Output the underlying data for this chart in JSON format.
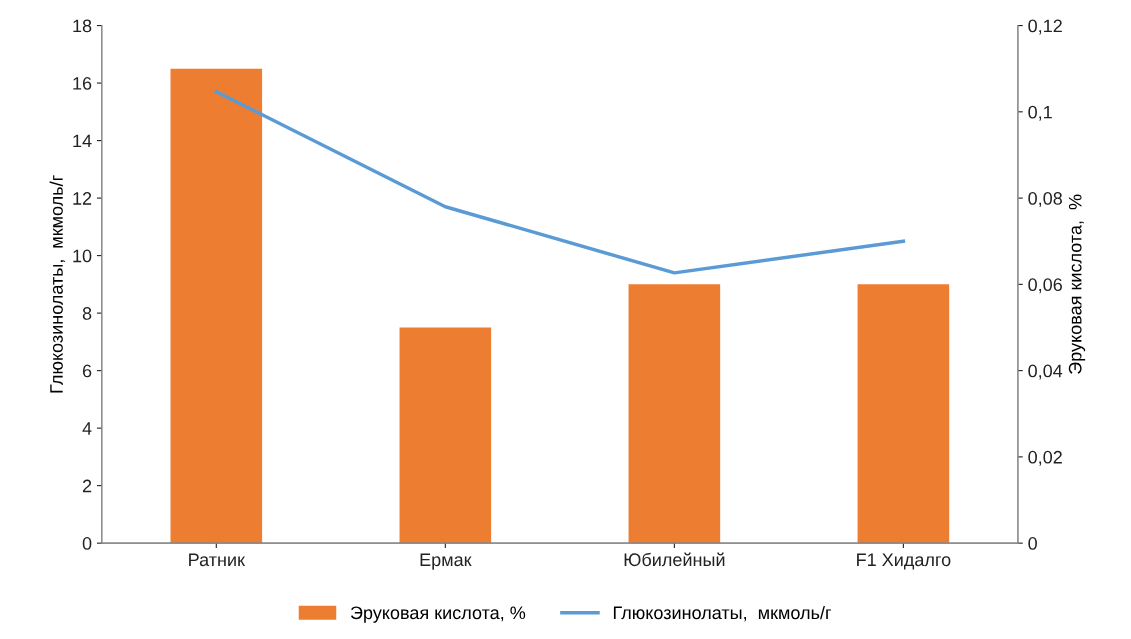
{
  "chart_data": {
    "type": "bar",
    "categories": [
      "Ратник",
      "Ермак",
      "Юбилейный",
      "F1 Хидалго"
    ],
    "series": [
      {
        "name": "Эруковая кислота, %",
        "axis": "y2",
        "color": "#ed7d31",
        "values": [
          0.11,
          0.05,
          0.06,
          0.06
        ]
      },
      {
        "name": "Глюкозинолаты,  мкмоль/г",
        "type": "line",
        "axis": "y",
        "color": "#5b9bd5",
        "values": [
          15.7,
          11.7,
          9.4,
          10.5
        ]
      }
    ],
    "ylabel": "Глюкозинолаты,  мкмоль/г",
    "y2label": "Эруковая кислота,  %",
    "ylim": [
      0,
      18
    ],
    "yticks": [
      0,
      2,
      4,
      6,
      8,
      10,
      12,
      14,
      16,
      18
    ],
    "y2lim": [
      0,
      0.12
    ],
    "y2ticks": [
      0,
      {
        "value": 0.02,
        "label": "0,02"
      },
      {
        "value": 0.04,
        "label": "0,04"
      },
      {
        "value": 0.06,
        "label": "0,06"
      },
      {
        "value": 0.08,
        "label": "0,08"
      },
      {
        "value": 0.1,
        "label": "0,1"
      },
      {
        "value": 0.12,
        "label": "0,12"
      }
    ],
    "legend": "bottom",
    "grid": false
  }
}
